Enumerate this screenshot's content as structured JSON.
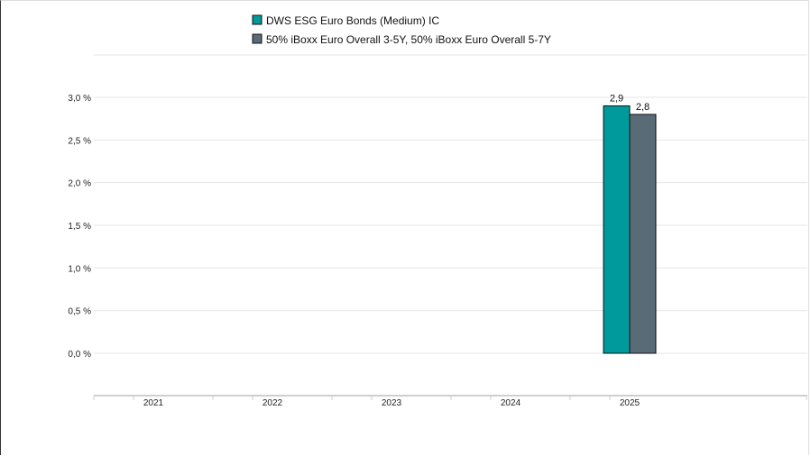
{
  "chart_data": {
    "type": "bar",
    "categories": [
      "2021",
      "2022",
      "2023",
      "2024",
      "2025"
    ],
    "series": [
      {
        "name": "DWS ESG Euro Bonds (Medium) IC",
        "color": "#009a9c",
        "values": [
          null,
          null,
          null,
          null,
          2.9
        ],
        "labels": [
          "",
          "",
          "",
          "",
          "2,9"
        ]
      },
      {
        "name": "50% iBoxx Euro Overall 3-5Y, 50% iBoxx Euro Overall 5-7Y",
        "color": "#5a6b78",
        "values": [
          null,
          null,
          null,
          null,
          2.8
        ],
        "labels": [
          "",
          "",
          "",
          "",
          "2,8"
        ]
      }
    ],
    "y_ticks": [
      {
        "value": 0.0,
        "label": "0,0 %"
      },
      {
        "value": 0.5,
        "label": "0,5 %"
      },
      {
        "value": 1.0,
        "label": "1,0 %"
      },
      {
        "value": 1.5,
        "label": "1,5 %"
      },
      {
        "value": 2.0,
        "label": "2,0 %"
      },
      {
        "value": 2.5,
        "label": "2,5 %"
      },
      {
        "value": 3.0,
        "label": "3,0 %"
      }
    ],
    "ylim": [
      0,
      3.0
    ],
    "legend_position": "top",
    "grid": true
  }
}
